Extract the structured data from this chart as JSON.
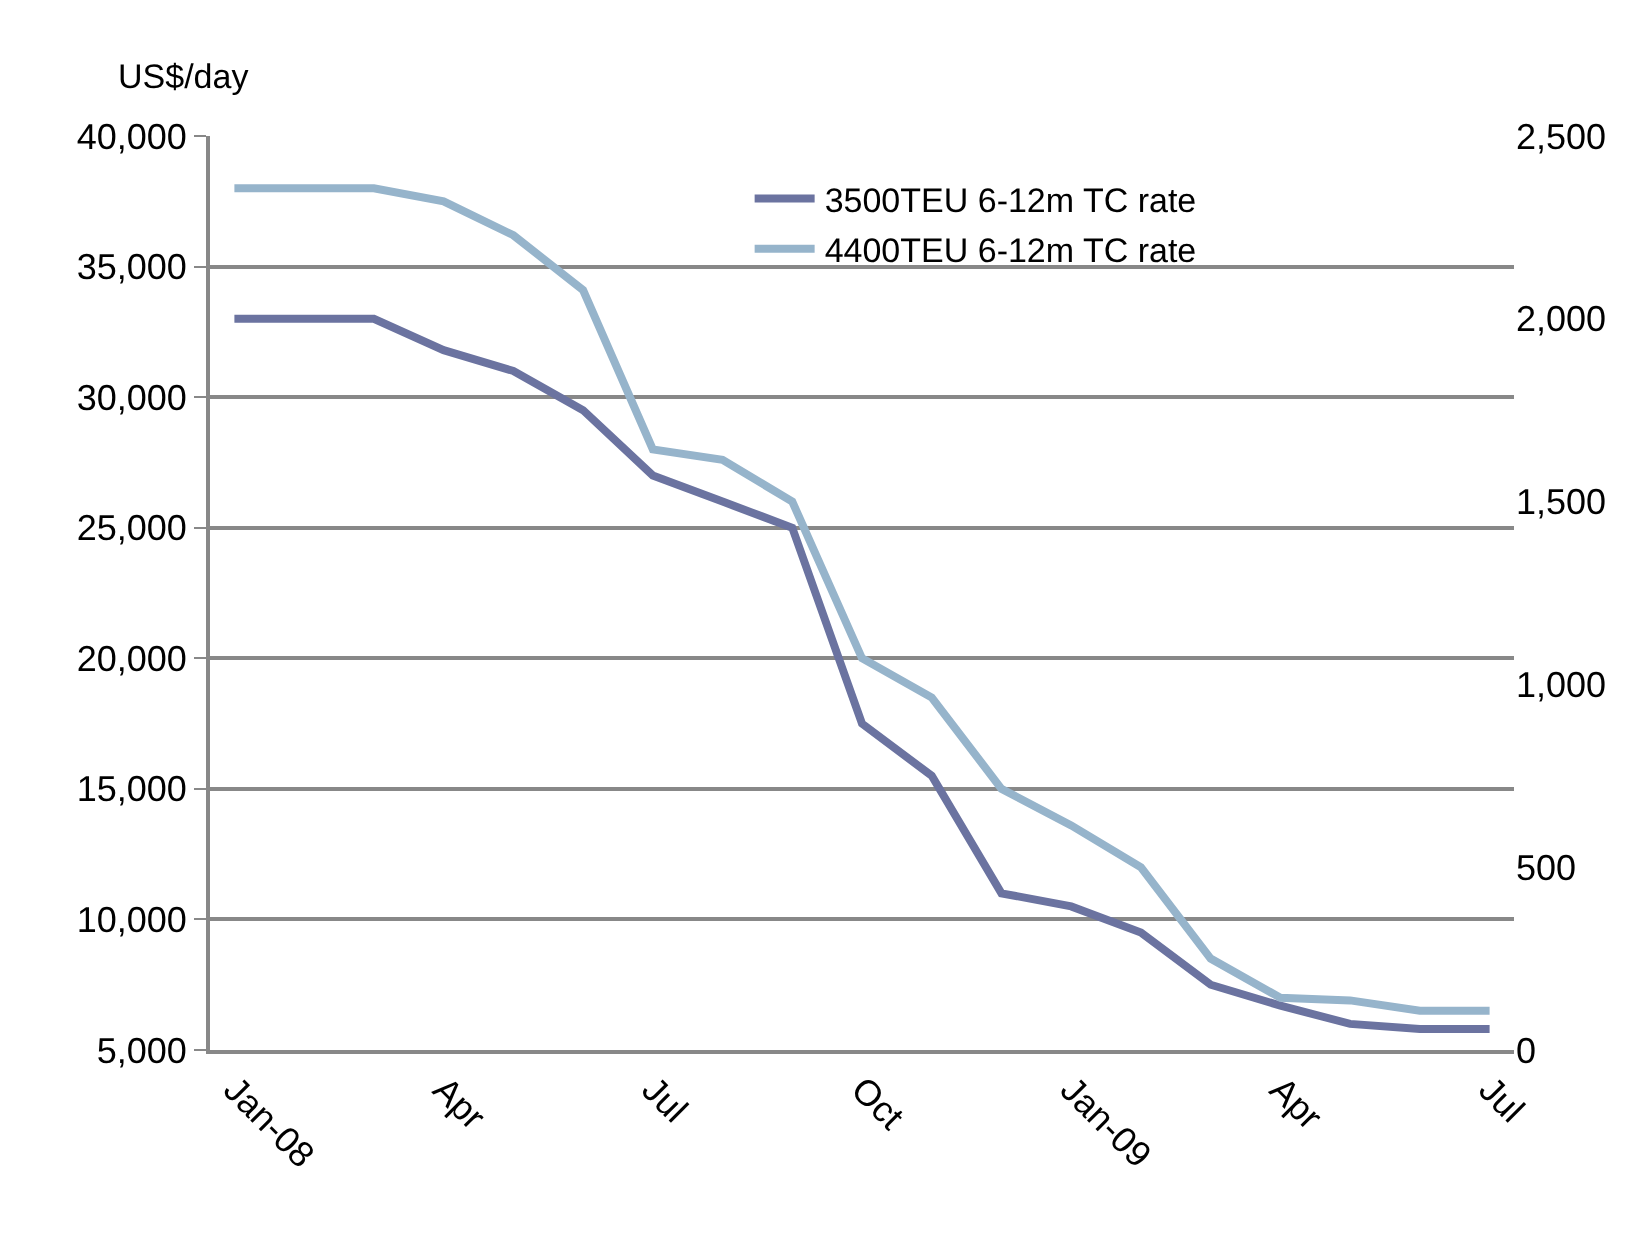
{
  "chart_data": {
    "type": "line",
    "ylabel": "US$/day",
    "categories": [
      "Jan-08",
      null,
      null,
      "Apr",
      null,
      null,
      "Jul",
      null,
      null,
      "Oct",
      null,
      null,
      "Jan-09",
      null,
      null,
      "Apr",
      null,
      null,
      "Jul"
    ],
    "series": [
      {
        "name": "3500TEU 6-12m TC rate",
        "color": "#6b73a0",
        "values": [
          33000,
          33000,
          33000,
          31800,
          31000,
          29500,
          27000,
          26000,
          25000,
          17500,
          15500,
          11000,
          10500,
          9500,
          7500,
          6700,
          6000,
          5800,
          5800
        ]
      },
      {
        "name": "4400TEU 6-12m TC rate",
        "color": "#96b4cb",
        "values": [
          38000,
          38000,
          38000,
          37500,
          36200,
          34100,
          28000,
          27600,
          26000,
          20000,
          18500,
          15000,
          13600,
          12000,
          8500,
          7000,
          6900,
          6500,
          6500
        ]
      }
    ],
    "ylim": [
      5000,
      40000
    ],
    "yticks": [
      {
        "value": 5000,
        "label": "5,000"
      },
      {
        "value": 10000,
        "label": "10,000"
      },
      {
        "value": 15000,
        "label": "15,000"
      },
      {
        "value": 20000,
        "label": "20,000"
      },
      {
        "value": 25000,
        "label": "25,000"
      },
      {
        "value": 30000,
        "label": "30,000"
      },
      {
        "value": 35000,
        "label": "35,000"
      },
      {
        "value": 40000,
        "label": "40,000"
      }
    ],
    "y2lim": [
      0,
      2500
    ],
    "y2ticks": [
      0,
      500,
      {
        "value": 1000,
        "label": "1,000"
      },
      {
        "value": 1500,
        "label": "1,500"
      },
      {
        "value": 2000,
        "label": "2,000"
      },
      {
        "value": 2500,
        "label": "2,500"
      }
    ],
    "grid": "y",
    "legend": "top right",
    "marker": "none",
    "line_style": "solid"
  }
}
